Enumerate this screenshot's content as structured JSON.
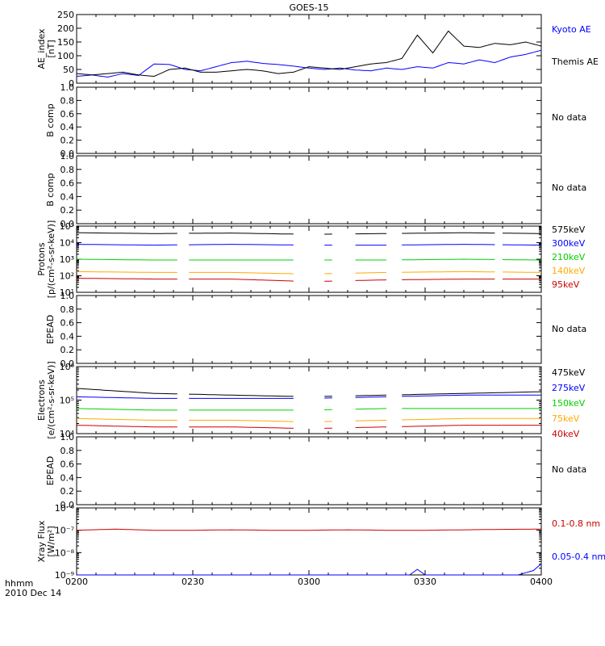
{
  "title": "GOES-15",
  "time_axis": {
    "ticks": [
      "0200",
      "0230",
      "0300",
      "0330",
      "0400"
    ],
    "label_line1": "hhmm",
    "label_line2": "2010 Dec 14"
  },
  "colors": {
    "black": "#000000",
    "blue": "#0000ff",
    "green": "#00d000",
    "orange": "#ffaa00",
    "red": "#cc0000"
  },
  "chart_data": [
    {
      "type": "line",
      "ylabel": "AE_index",
      "yunit": "[nT]",
      "ylim": [
        0,
        250
      ],
      "yticks": [
        "0",
        "50",
        "100",
        "150",
        "200",
        "250"
      ],
      "x_range": [
        "0200",
        "0400"
      ],
      "series": [
        {
          "name": "Kyoto AE",
          "color": "#0000ff",
          "x": [
            0,
            4,
            8,
            12,
            16,
            20,
            24,
            28,
            32,
            36,
            40,
            44,
            48,
            52,
            56,
            60,
            64,
            68,
            72,
            76,
            80,
            84,
            88,
            92,
            96,
            100,
            104,
            108,
            112,
            116,
            120
          ],
          "y": [
            25,
            30,
            22,
            35,
            28,
            70,
            68,
            50,
            45,
            60,
            75,
            80,
            72,
            68,
            62,
            55,
            50,
            55,
            48,
            45,
            55,
            50,
            60,
            55,
            75,
            70,
            85,
            75,
            95,
            105,
            120
          ]
        },
        {
          "name": "Themis AE",
          "color": "#000000",
          "x": [
            0,
            4,
            8,
            12,
            16,
            20,
            24,
            28,
            32,
            36,
            40,
            44,
            48,
            52,
            56,
            60,
            64,
            68,
            72,
            76,
            80,
            84,
            88,
            92,
            96,
            100,
            104,
            108,
            112,
            116,
            120
          ],
          "y": [
            35,
            30,
            35,
            40,
            30,
            25,
            50,
            55,
            40,
            40,
            45,
            50,
            45,
            35,
            40,
            60,
            55,
            50,
            60,
            70,
            75,
            90,
            175,
            110,
            190,
            135,
            130,
            145,
            140,
            150,
            135
          ]
        }
      ]
    },
    {
      "type": "line",
      "ylabel": "B comp",
      "ylim": [
        0,
        1.0
      ],
      "yticks": [
        "0.0",
        "0.2",
        "0.4",
        "0.6",
        "0.8",
        "1.0"
      ],
      "note": "No data",
      "series": []
    },
    {
      "type": "line",
      "ylabel": "B comp",
      "ylim": [
        0,
        1.0
      ],
      "yticks": [
        "0.0",
        "0.2",
        "0.4",
        "0.6",
        "0.8",
        "1.0"
      ],
      "note": "No data",
      "series": []
    },
    {
      "type": "line",
      "ylabel": "Protons",
      "yunit": "[p/(cm²-s-sr-keV)]",
      "yscale": "log",
      "ylim": [
        1,
        5
      ],
      "yticks": [
        "10¹",
        "10²",
        "10³",
        "10⁴",
        "10⁵"
      ],
      "gaps": [
        [
          26,
          29
        ],
        [
          56,
          64
        ],
        [
          66,
          72
        ],
        [
          80,
          84
        ],
        [
          108,
          110
        ]
      ],
      "series": [
        {
          "name": "575keV",
          "color": "#000000",
          "x": [
            0,
            20,
            40,
            60,
            80,
            100,
            120
          ],
          "y": [
            4.6,
            4.55,
            4.58,
            4.5,
            4.55,
            4.6,
            4.55
          ]
        },
        {
          "name": "300keV",
          "color": "#0000ff",
          "x": [
            0,
            20,
            40,
            60,
            80,
            100,
            120
          ],
          "y": [
            3.9,
            3.85,
            3.9,
            3.85,
            3.85,
            3.9,
            3.85
          ]
        },
        {
          "name": "210keV",
          "color": "#00d000",
          "x": [
            0,
            20,
            40,
            60,
            80,
            100,
            120
          ],
          "y": [
            3.0,
            2.95,
            2.95,
            2.95,
            2.95,
            3.0,
            2.95
          ]
        },
        {
          "name": "140keV",
          "color": "#ffaa00",
          "x": [
            0,
            20,
            40,
            60,
            80,
            100,
            120
          ],
          "y": [
            2.25,
            2.2,
            2.2,
            2.1,
            2.2,
            2.25,
            2.2
          ]
        },
        {
          "name": "95keV",
          "color": "#cc0000",
          "x": [
            0,
            20,
            40,
            60,
            80,
            100,
            120
          ],
          "y": [
            1.85,
            1.8,
            1.8,
            1.65,
            1.75,
            1.8,
            1.8
          ]
        }
      ]
    },
    {
      "type": "line",
      "ylabel": "EPEAD",
      "ylim": [
        0,
        1.0
      ],
      "yticks": [
        "0.0",
        "0.2",
        "0.4",
        "0.6",
        "0.8",
        "1.0"
      ],
      "note": "No data",
      "series": []
    },
    {
      "type": "line",
      "ylabel": "Electrons",
      "yunit": "[e/(cm²-s-sr-keV)]",
      "yscale": "log",
      "ylim": [
        4,
        6
      ],
      "yticks": [
        "10⁴",
        "10⁵",
        "10⁶"
      ],
      "gaps": [
        [
          26,
          29
        ],
        [
          56,
          64
        ],
        [
          66,
          72
        ],
        [
          80,
          84
        ]
      ],
      "series": [
        {
          "name": "475keV",
          "color": "#000000",
          "x": [
            0,
            20,
            40,
            60,
            80,
            100,
            120
          ],
          "y": [
            5.35,
            5.2,
            5.15,
            5.1,
            5.15,
            5.2,
            5.25
          ]
        },
        {
          "name": "275keV",
          "color": "#0000ff",
          "x": [
            0,
            20,
            40,
            60,
            80,
            100,
            120
          ],
          "y": [
            5.1,
            5.05,
            5.05,
            5.05,
            5.1,
            5.15,
            5.15
          ]
        },
        {
          "name": "150keV",
          "color": "#00d000",
          "x": [
            0,
            20,
            40,
            60,
            80,
            100,
            120
          ],
          "y": [
            4.75,
            4.7,
            4.7,
            4.7,
            4.75,
            4.75,
            4.75
          ]
        },
        {
          "name": "75keV",
          "color": "#ffaa00",
          "x": [
            0,
            20,
            40,
            60,
            80,
            100,
            120
          ],
          "y": [
            4.45,
            4.4,
            4.4,
            4.35,
            4.4,
            4.45,
            4.45
          ]
        },
        {
          "name": "40keV",
          "color": "#cc0000",
          "x": [
            0,
            20,
            40,
            60,
            80,
            100,
            120
          ],
          "y": [
            4.25,
            4.2,
            4.2,
            4.15,
            4.2,
            4.25,
            4.25
          ]
        }
      ]
    },
    {
      "type": "line",
      "ylabel": "EPEAD",
      "ylim": [
        0,
        1.0
      ],
      "yticks": [
        "0.0",
        "0.2",
        "0.4",
        "0.6",
        "0.8",
        "1.0"
      ],
      "note": "No data",
      "series": []
    },
    {
      "type": "line",
      "ylabel": "Xray Flux",
      "yunit": "[W/m²]",
      "yscale": "log",
      "ylim": [
        -9,
        -6
      ],
      "yticks": [
        "10⁻⁹",
        "10⁻⁸",
        "10⁻⁷",
        "10⁻⁶"
      ],
      "series": [
        {
          "name": "0.1-0.8 nm",
          "color": "#cc0000",
          "x": [
            0,
            10,
            20,
            30,
            40,
            50,
            60,
            70,
            80,
            90,
            100,
            110,
            120
          ],
          "y": [
            -7.0,
            -6.95,
            -7.0,
            -7.0,
            -6.98,
            -7.0,
            -7.0,
            -6.98,
            -7.0,
            -7.0,
            -6.98,
            -6.96,
            -6.95
          ]
        },
        {
          "name": "0.05-0.4 nm",
          "color": "#0000ff",
          "x": [
            0,
            20,
            40,
            60,
            80,
            86,
            88,
            90,
            100,
            114,
            118,
            120
          ],
          "y": [
            -9.0,
            -9.0,
            -9.0,
            -9.0,
            -9.0,
            -9.0,
            -8.75,
            -9.0,
            -9.0,
            -9.0,
            -8.8,
            -8.5
          ]
        }
      ]
    }
  ]
}
